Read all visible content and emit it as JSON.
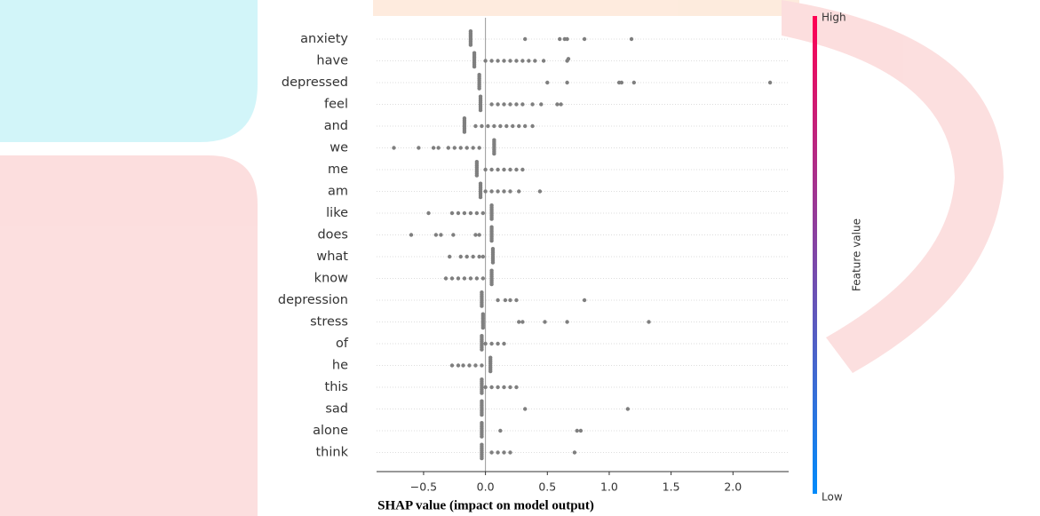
{
  "chart_data": {
    "type": "beeswarm",
    "xlabel": "SHAP value (impact on model output)",
    "categories": [
      "anxiety",
      "have",
      "depressed",
      "feel",
      "and",
      "we",
      "me",
      "am",
      "like",
      "does",
      "what",
      "know",
      "depression",
      "stress",
      "of",
      "he",
      "this",
      "sad",
      "alone",
      "think"
    ],
    "values": [
      [
        -0.12,
        -0.12,
        -0.12,
        -0.12,
        -0.12,
        -0.12,
        -0.12,
        -0.12,
        0.32,
        0.6,
        0.64,
        0.66,
        0.8,
        1.18
      ],
      [
        -0.09,
        -0.09,
        -0.09,
        -0.09,
        -0.09,
        -0.09,
        -0.09,
        -0.09,
        0.0,
        0.05,
        0.1,
        0.15,
        0.2,
        0.25,
        0.3,
        0.35,
        0.4,
        0.47,
        0.66,
        0.67
      ],
      [
        -0.05,
        -0.05,
        -0.05,
        -0.05,
        -0.05,
        -0.05,
        -0.05,
        -0.05,
        0.5,
        0.66,
        1.08,
        1.1,
        1.2,
        2.3
      ],
      [
        -0.04,
        -0.04,
        -0.04,
        -0.04,
        -0.04,
        -0.04,
        -0.04,
        -0.04,
        0.05,
        0.1,
        0.15,
        0.2,
        0.25,
        0.3,
        0.38,
        0.45,
        0.58,
        0.61
      ],
      [
        -0.17,
        -0.17,
        -0.17,
        -0.17,
        -0.17,
        -0.17,
        -0.17,
        -0.17,
        -0.08,
        -0.03,
        0.02,
        0.07,
        0.12,
        0.17,
        0.22,
        0.27,
        0.32,
        0.38
      ],
      [
        0.07,
        0.07,
        0.07,
        0.07,
        0.07,
        0.07,
        0.07,
        0.07,
        -0.74,
        -0.54,
        -0.42,
        -0.38,
        -0.3,
        -0.25,
        -0.2,
        -0.15,
        -0.1,
        -0.05
      ],
      [
        -0.07,
        -0.07,
        -0.07,
        -0.07,
        -0.07,
        -0.07,
        -0.07,
        -0.07,
        0.0,
        0.05,
        0.1,
        0.15,
        0.2,
        0.25,
        0.3
      ],
      [
        -0.04,
        -0.04,
        -0.04,
        -0.04,
        -0.04,
        -0.04,
        -0.04,
        -0.04,
        0.0,
        0.05,
        0.1,
        0.15,
        0.2,
        0.27,
        0.44
      ],
      [
        0.05,
        0.05,
        0.05,
        0.05,
        0.05,
        0.05,
        0.05,
        0.05,
        -0.46,
        -0.27,
        -0.22,
        -0.17,
        -0.12,
        -0.07,
        -0.02
      ],
      [
        0.05,
        0.05,
        0.05,
        0.05,
        0.05,
        0.05,
        0.05,
        0.05,
        -0.6,
        -0.4,
        -0.36,
        -0.26,
        -0.08,
        -0.05
      ],
      [
        0.06,
        0.06,
        0.06,
        0.06,
        0.06,
        0.06,
        0.06,
        0.06,
        -0.29,
        -0.2,
        -0.15,
        -0.1,
        -0.05,
        -0.02
      ],
      [
        0.05,
        0.05,
        0.05,
        0.05,
        0.05,
        0.05,
        0.05,
        0.05,
        -0.32,
        -0.27,
        -0.22,
        -0.17,
        -0.12,
        -0.07,
        -0.02
      ],
      [
        -0.03,
        -0.03,
        -0.03,
        -0.03,
        -0.03,
        -0.03,
        -0.03,
        -0.03,
        0.1,
        0.16,
        0.2,
        0.25,
        0.8
      ],
      [
        -0.02,
        -0.02,
        -0.02,
        -0.02,
        -0.02,
        -0.02,
        -0.02,
        -0.02,
        0.27,
        0.3,
        0.48,
        0.66,
        1.32
      ],
      [
        -0.03,
        -0.03,
        -0.03,
        -0.03,
        -0.03,
        -0.03,
        -0.03,
        -0.03,
        0.0,
        0.05,
        0.1,
        0.15
      ],
      [
        0.04,
        0.04,
        0.04,
        0.04,
        0.04,
        0.04,
        0.04,
        0.04,
        -0.27,
        -0.22,
        -0.18,
        -0.13,
        -0.08,
        -0.03
      ],
      [
        -0.03,
        -0.03,
        -0.03,
        -0.03,
        -0.03,
        -0.03,
        -0.03,
        -0.03,
        0.0,
        0.05,
        0.1,
        0.15,
        0.2,
        0.25
      ],
      [
        -0.03,
        -0.03,
        -0.03,
        -0.03,
        -0.03,
        -0.03,
        -0.03,
        -0.03,
        0.32,
        1.15
      ],
      [
        -0.03,
        -0.03,
        -0.03,
        -0.03,
        -0.03,
        -0.03,
        -0.03,
        -0.03,
        0.12,
        0.74,
        0.77
      ],
      [
        -0.03,
        -0.03,
        -0.03,
        -0.03,
        -0.03,
        -0.03,
        -0.03,
        -0.03,
        0.05,
        0.1,
        0.15,
        0.2,
        0.72
      ]
    ],
    "color": "#7f7f7f",
    "xlim": [
      -0.88,
      2.45
    ],
    "xticks": [
      {
        "value": -0.5,
        "label": "−0.5"
      },
      {
        "value": 0,
        "label": "0.0"
      },
      0.5,
      {
        "value": 1,
        "label": "1.0"
      },
      1.5,
      {
        "value": 2,
        "label": "2.0"
      }
    ],
    "grid": true,
    "colorbar": {
      "high": "High",
      "low": "Low",
      "label": "Feature value",
      "colors": [
        "#008bfb",
        "#ff0052"
      ]
    }
  }
}
